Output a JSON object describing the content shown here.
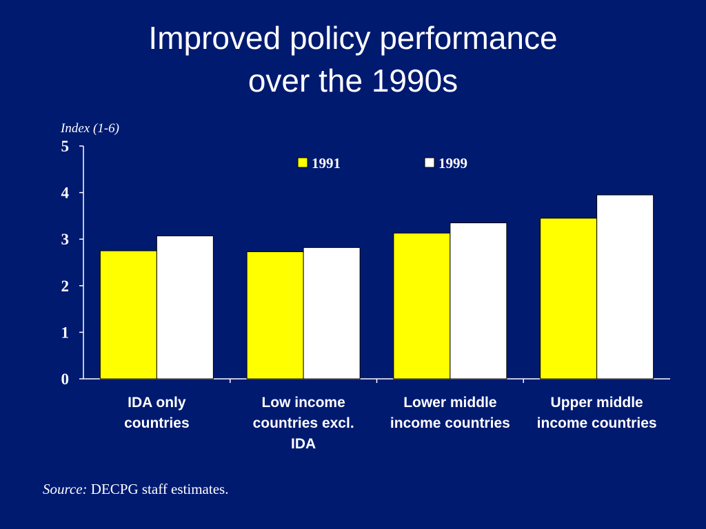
{
  "slide": {
    "title_line_1": "Improved policy performance",
    "title_line_2": "over the 1990s",
    "source_label": "Source:",
    "source_text": "DECPG staff estimates."
  },
  "colors": {
    "background": "#001a70",
    "series_1991": "#ffff00",
    "series_1999": "#ffffff",
    "axis": "#ffffff",
    "text": "#ffffff"
  },
  "chart_data": {
    "type": "bar",
    "title": "",
    "ylabel": "Index (1-6)",
    "xlabel": "",
    "ylim": [
      0,
      5
    ],
    "yticks": [
      "0",
      "1",
      "2",
      "3",
      "4",
      "5"
    ],
    "grid": false,
    "legend_position": "top",
    "categories": [
      [
        "IDA only",
        "countries"
      ],
      [
        "Low income",
        "countries excl.",
        "IDA"
      ],
      [
        "Lower middle",
        "income countries"
      ],
      [
        "Upper middle",
        "income countries"
      ]
    ],
    "series": [
      {
        "name": "1991",
        "values": [
          2.75,
          2.73,
          3.13,
          3.45
        ]
      },
      {
        "name": "1999",
        "values": [
          3.07,
          2.82,
          3.35,
          3.95
        ]
      }
    ]
  }
}
